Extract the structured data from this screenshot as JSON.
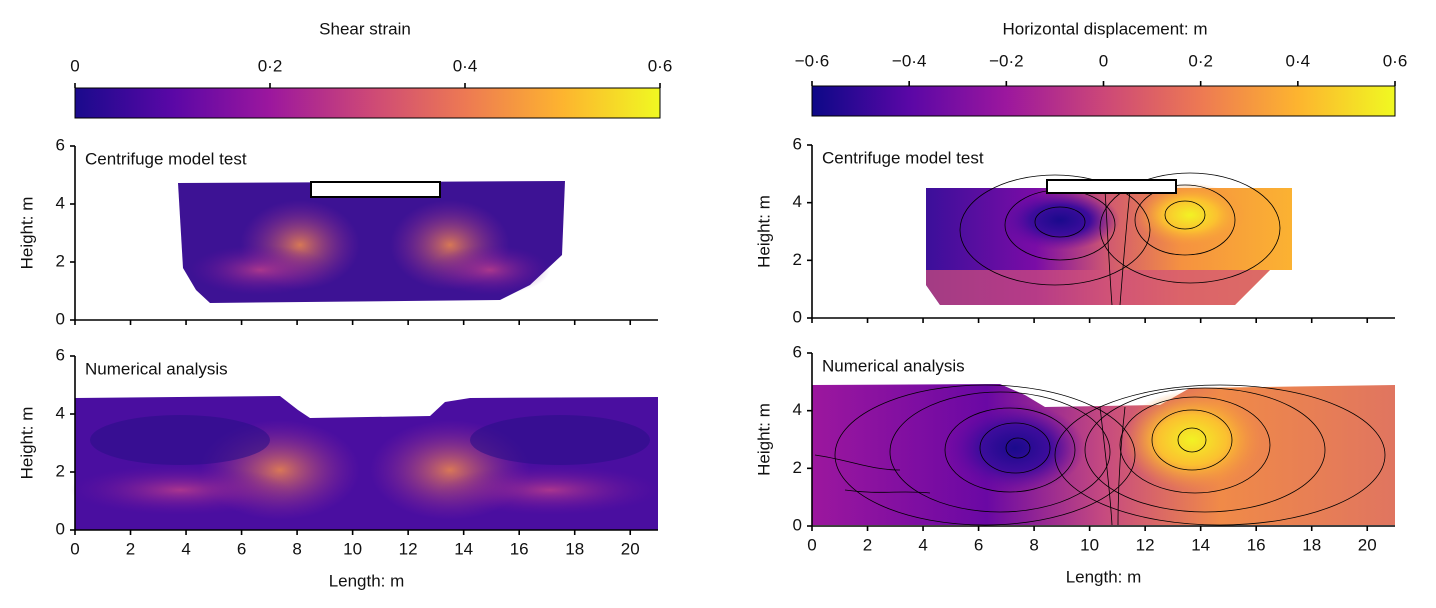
{
  "figures": [
    {
      "colorbar": {
        "title": "Shear strain",
        "lim": [
          0,
          0.6
        ],
        "ticks": [
          0,
          {
            "value": 0.2,
            "label": "0·2"
          },
          {
            "value": 0.4,
            "label": "0·4"
          },
          {
            "value": 0.6,
            "label": "0·6"
          }
        ],
        "colors": [
          "#1a0a8c",
          "#5a07a6",
          "#9c179e",
          "#cc4778",
          "#ed7953",
          "#fdb42f",
          "#f0f921"
        ]
      },
      "panels": [
        {
          "label": "Centrifuge model test",
          "ylabel": "Height: m",
          "xlim": [
            0,
            21
          ],
          "ylim": [
            0,
            6
          ],
          "yticks": [
            0,
            2,
            4,
            6
          ]
        },
        {
          "label": "Numerical analysis",
          "ylabel": "Height: m",
          "xlabel": "Length: m",
          "xlim": [
            0,
            21
          ],
          "ylim": [
            0,
            6
          ],
          "yticks": [
            0,
            2,
            4,
            6
          ],
          "xticks": [
            0,
            2,
            4,
            6,
            8,
            10,
            12,
            14,
            16,
            18,
            20
          ]
        }
      ]
    },
    {
      "colorbar": {
        "title": "Horizontal displacement: m",
        "lim": [
          -0.6,
          0.6
        ],
        "ticks": [
          {
            "value": -0.6,
            "label": "−0·6"
          },
          {
            "value": -0.4,
            "label": "−0·4"
          },
          {
            "value": -0.2,
            "label": "−0·2"
          },
          0,
          {
            "value": 0.2,
            "label": "0·2"
          },
          {
            "value": 0.4,
            "label": "0·4"
          },
          {
            "value": 0.6,
            "label": "0·6"
          }
        ],
        "colors": [
          "#0d0887",
          "#5a07a6",
          "#9c179e",
          "#cc4778",
          "#ed7953",
          "#fdb42f",
          "#f0f921"
        ]
      },
      "panels": [
        {
          "label": "Centrifuge model test",
          "ylabel": "Height: m",
          "xlim": [
            0,
            21
          ],
          "ylim": [
            0,
            6
          ],
          "yticks": [
            0,
            2,
            4,
            6
          ]
        },
        {
          "label": "Numerical analysis",
          "ylabel": "Height: m",
          "xlabel": "Length: m",
          "xlim": [
            0,
            21
          ],
          "ylim": [
            0,
            6
          ],
          "yticks": [
            0,
            2,
            4,
            6
          ],
          "xticks": [
            0,
            2,
            4,
            6,
            8,
            10,
            12,
            14,
            16,
            18,
            20
          ]
        }
      ]
    }
  ]
}
